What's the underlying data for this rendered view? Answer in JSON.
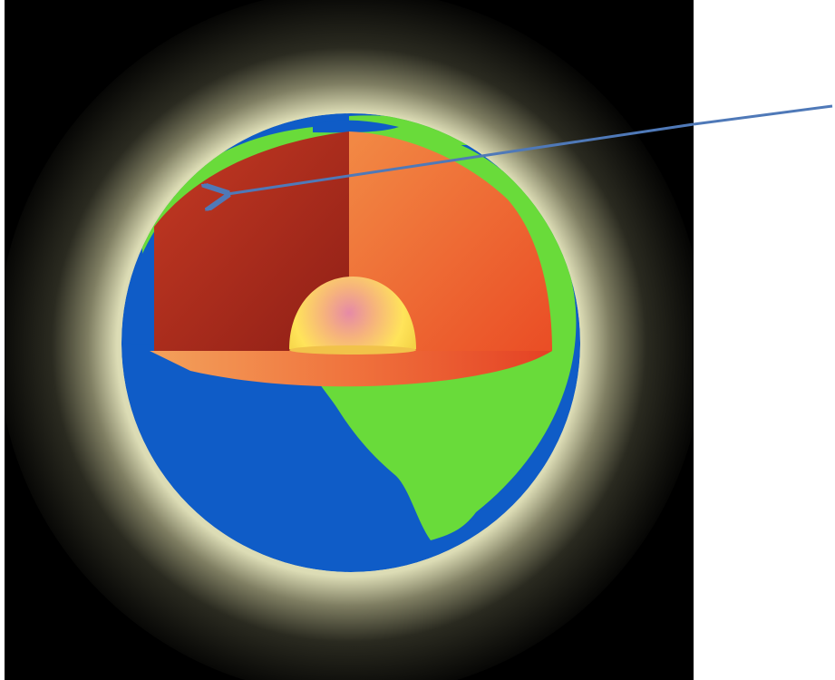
{
  "diagram": {
    "colors": {
      "background": "#000000",
      "glow": "#d7d7b0",
      "ocean": "#0f5cc7",
      "land": "#69db3a",
      "crust": "#e9631f",
      "mantle_dark": "#a8281a",
      "mantle_light": "#f07a35",
      "outer_core": "#ffe34d",
      "inner_core": "#e98fa3",
      "arrow": "#4f79b8"
    },
    "arrow": {
      "points_to": "crust"
    }
  }
}
